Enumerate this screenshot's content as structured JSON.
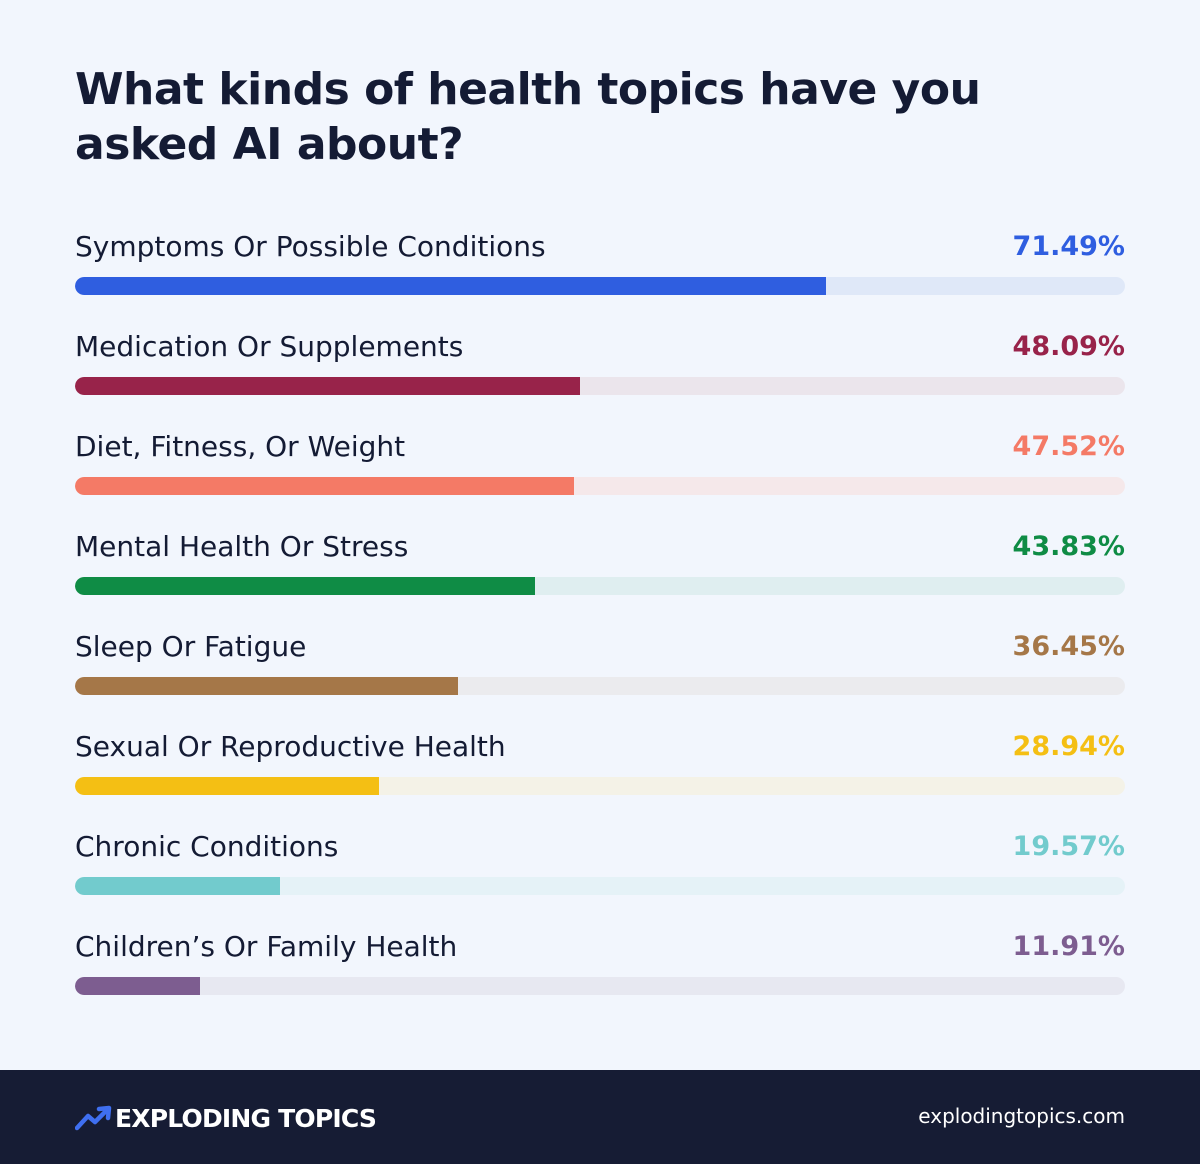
{
  "chart_data": {
    "type": "bar",
    "orientation": "horizontal",
    "title": "What kinds of health topics have you asked AI about?",
    "categories": [
      "Symptoms Or Possible Conditions",
      "Medication Or Supplements",
      "Diet, Fitness, Or Weight",
      "Mental Health Or Stress",
      "Sleep Or Fatigue",
      "Sexual Or Reproductive Health",
      "Chronic Conditions",
      "Children’s Or Family Health"
    ],
    "values": [
      71.49,
      48.09,
      47.52,
      43.83,
      36.45,
      28.94,
      19.57,
      11.91
    ],
    "value_labels": [
      "71.49%",
      "48.09%",
      "47.52%",
      "43.83%",
      "36.45%",
      "28.94%",
      "19.57%",
      "11.91%"
    ],
    "colors": [
      "#2f5ee0",
      "#98234a",
      "#f47a66",
      "#0f8c45",
      "#a57748",
      "#f4bf14",
      "#72cbcd",
      "#7d5d90"
    ],
    "track_colors": [
      "#dfe8f8",
      "#ebe5ec",
      "#f5e8ea",
      "#dfeef0",
      "#ebebee",
      "#f4f2e7",
      "#e5f2f7",
      "#e7e8f1"
    ],
    "xlim": [
      0,
      100
    ],
    "grid": false,
    "legend": "none"
  },
  "footer": {
    "brand": "EXPLODING TOPICS",
    "website": "explodingtopics.com",
    "logo_icon": "trend-arrow-icon"
  }
}
